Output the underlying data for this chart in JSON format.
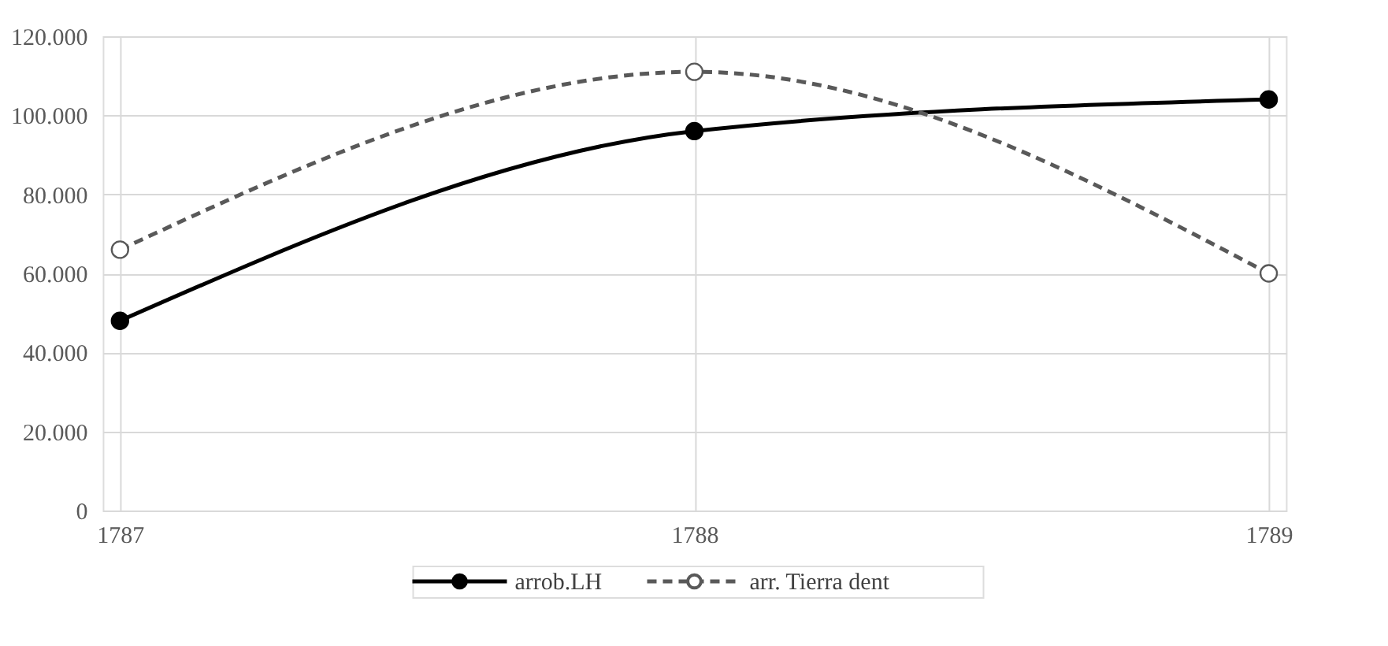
{
  "chart_data": {
    "type": "line",
    "x": [
      1787,
      1788,
      1789
    ],
    "series": [
      {
        "name": "arrob.LH",
        "color": "#000000",
        "values": [
          48000,
          96000,
          104000
        ],
        "marker": "circle",
        "line_style": "solid"
      },
      {
        "name": "arr. Tierra dent",
        "color": "#595959",
        "values": [
          66000,
          111000,
          60000
        ],
        "marker": "circle",
        "line_style": "dashed"
      }
    ],
    "xlim": [
      1786.97,
      1789.03
    ],
    "xticks": [
      1787,
      1788,
      1789
    ],
    "ylim": [
      0,
      120000
    ],
    "yticks": [
      0,
      {
        "value": 20000,
        "label": "20.000"
      },
      {
        "value": 40000,
        "label": "40.000"
      },
      {
        "value": 60000,
        "label": "60.000"
      },
      {
        "value": 80000,
        "label": "80.000"
      },
      {
        "value": 100000,
        "label": "100.000"
      },
      {
        "value": 120000,
        "label": "120.000"
      }
    ],
    "grid": true,
    "legend": "bottom"
  }
}
